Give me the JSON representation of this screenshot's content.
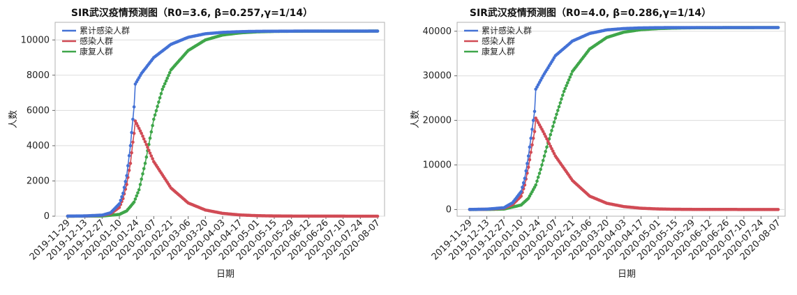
{
  "chart_data": [
    {
      "type": "line",
      "title": "SIR武汉疫情预测图（R0=3.6, β=0.257,γ=1/14）",
      "xlabel": "日期",
      "ylabel": "人数",
      "ylim": [
        0,
        11000
      ],
      "yticks": [
        0,
        2000,
        4000,
        6000,
        8000,
        10000
      ],
      "x_tick_labels": [
        "2019-11-29",
        "2019-12-13",
        "2019-12-27",
        "2020-01-10",
        "2020-01-24",
        "2020-02-07",
        "2020-02-21",
        "2020-03-06",
        "2020-03-20",
        "2020-04-03",
        "2020-04-17",
        "2020-05-01",
        "2020-05-15",
        "2020-05-29",
        "2020-06-12",
        "2020-06-26",
        "2020-07-10",
        "2020-07-24",
        "2020-08-07"
      ],
      "x_start": "2019-11-29",
      "x_end": "2020-08-07",
      "grid": true,
      "legend_position": "top-left",
      "series": [
        {
          "name": "累计感染人群",
          "color": "#4472d6",
          "points": [
            [
              "2019-11-29",
              5
            ],
            [
              "2019-12-13",
              15
            ],
            [
              "2019-12-27",
              60
            ],
            [
              "2020-01-03",
              200
            ],
            [
              "2020-01-10",
              700
            ],
            [
              "2020-01-13",
              1300
            ],
            [
              "2020-01-16",
              2300
            ],
            [
              "2020-01-19",
              4000
            ],
            [
              "2020-01-21",
              5500
            ],
            [
              "2020-01-22",
              6200
            ],
            [
              "2020-01-23",
              7500
            ],
            [
              "2020-01-28",
              8100
            ],
            [
              "2020-02-07",
              9000
            ],
            [
              "2020-02-21",
              9750
            ],
            [
              "2020-03-06",
              10150
            ],
            [
              "2020-03-20",
              10350
            ],
            [
              "2020-04-03",
              10430
            ],
            [
              "2020-04-17",
              10470
            ],
            [
              "2020-05-01",
              10490
            ],
            [
              "2020-06-01",
              10500
            ],
            [
              "2020-08-07",
              10500
            ]
          ]
        },
        {
          "name": "感染人群",
          "color": "#d14b55",
          "points": [
            [
              "2019-11-29",
              3
            ],
            [
              "2019-12-13",
              10
            ],
            [
              "2019-12-27",
              50
            ],
            [
              "2020-01-03",
              150
            ],
            [
              "2020-01-10",
              500
            ],
            [
              "2020-01-13",
              1000
            ],
            [
              "2020-01-16",
              1800
            ],
            [
              "2020-01-19",
              3000
            ],
            [
              "2020-01-21",
              4200
            ],
            [
              "2020-01-22",
              4700
            ],
            [
              "2020-01-23",
              5400
            ],
            [
              "2020-01-28",
              4700
            ],
            [
              "2020-02-07",
              3100
            ],
            [
              "2020-02-21",
              1600
            ],
            [
              "2020-03-06",
              750
            ],
            [
              "2020-03-20",
              350
            ],
            [
              "2020-04-03",
              160
            ],
            [
              "2020-04-17",
              70
            ],
            [
              "2020-05-01",
              30
            ],
            [
              "2020-05-15",
              12
            ],
            [
              "2020-06-01",
              5
            ],
            [
              "2020-08-07",
              0
            ]
          ]
        },
        {
          "name": "康复人群",
          "color": "#3fa64a",
          "points": [
            [
              "2019-11-29",
              0
            ],
            [
              "2019-12-13",
              5
            ],
            [
              "2019-12-27",
              10
            ],
            [
              "2020-01-10",
              100
            ],
            [
              "2020-01-16",
              300
            ],
            [
              "2020-01-22",
              800
            ],
            [
              "2020-01-26",
              1500
            ],
            [
              "2020-01-31",
              3000
            ],
            [
              "2020-02-07",
              5500
            ],
            [
              "2020-02-14",
              7200
            ],
            [
              "2020-02-21",
              8300
            ],
            [
              "2020-03-06",
              9400
            ],
            [
              "2020-03-20",
              10000
            ],
            [
              "2020-04-03",
              10280
            ],
            [
              "2020-04-17",
              10400
            ],
            [
              "2020-05-01",
              10460
            ],
            [
              "2020-05-15",
              10485
            ],
            [
              "2020-06-01",
              10495
            ],
            [
              "2020-08-07",
              10500
            ]
          ]
        }
      ]
    },
    {
      "type": "line",
      "title": "SIR武汉疫情预测图（R0=4.0, β=0.286,γ=1/14）",
      "xlabel": "日期",
      "ylabel": "人数",
      "ylim": [
        -1500,
        42000
      ],
      "yticks": [
        0,
        10000,
        20000,
        30000,
        40000
      ],
      "x_tick_labels": [
        "2019-11-29",
        "2019-12-13",
        "2019-12-27",
        "2020-01-10",
        "2020-01-24",
        "2020-02-07",
        "2020-02-21",
        "2020-03-06",
        "2020-03-20",
        "2020-04-03",
        "2020-04-17",
        "2020-05-01",
        "2020-05-15",
        "2020-05-29",
        "2020-06-12",
        "2020-06-26",
        "2020-07-10",
        "2020-07-24",
        "2020-08-07"
      ],
      "x_start": "2019-11-29",
      "x_end": "2020-08-07",
      "grid": true,
      "legend_position": "top-left",
      "series": [
        {
          "name": "累计感染人群",
          "color": "#4472d6",
          "points": [
            [
              "2019-11-29",
              10
            ],
            [
              "2019-12-13",
              80
            ],
            [
              "2019-12-27",
              400
            ],
            [
              "2020-01-03",
              1500
            ],
            [
              "2020-01-10",
              4000
            ],
            [
              "2020-01-13",
              7000
            ],
            [
              "2020-01-16",
              12000
            ],
            [
              "2020-01-19",
              18000
            ],
            [
              "2020-01-21",
              22000
            ],
            [
              "2020-01-22",
              27000
            ],
            [
              "2020-01-28",
              30000
            ],
            [
              "2020-02-07",
              34500
            ],
            [
              "2020-02-21",
              37800
            ],
            [
              "2020-03-06",
              39500
            ],
            [
              "2020-03-20",
              40300
            ],
            [
              "2020-04-03",
              40600
            ],
            [
              "2020-04-17",
              40750
            ],
            [
              "2020-05-01",
              40800
            ],
            [
              "2020-06-01",
              40820
            ],
            [
              "2020-08-07",
              40830
            ]
          ]
        },
        {
          "name": "感染人群",
          "color": "#d14b55",
          "points": [
            [
              "2019-11-29",
              5
            ],
            [
              "2019-12-13",
              60
            ],
            [
              "2019-12-27",
              300
            ],
            [
              "2020-01-03",
              1100
            ],
            [
              "2020-01-10",
              3000
            ],
            [
              "2020-01-13",
              5500
            ],
            [
              "2020-01-16",
              9500
            ],
            [
              "2020-01-19",
              14500
            ],
            [
              "2020-01-21",
              17500
            ],
            [
              "2020-01-22",
              20500
            ],
            [
              "2020-01-28",
              17500
            ],
            [
              "2020-02-07",
              12000
            ],
            [
              "2020-02-21",
              6500
            ],
            [
              "2020-03-06",
              3000
            ],
            [
              "2020-03-20",
              1400
            ],
            [
              "2020-04-03",
              650
            ],
            [
              "2020-04-17",
              280
            ],
            [
              "2020-05-01",
              120
            ],
            [
              "2020-05-15",
              50
            ],
            [
              "2020-06-01",
              20
            ],
            [
              "2020-08-07",
              0
            ]
          ]
        },
        {
          "name": "康复人群",
          "color": "#3fa64a",
          "points": [
            [
              "2019-11-29",
              0
            ],
            [
              "2019-12-13",
              20
            ],
            [
              "2019-12-27",
              100
            ],
            [
              "2020-01-10",
              1000
            ],
            [
              "2020-01-16",
              2500
            ],
            [
              "2020-01-22",
              5500
            ],
            [
              "2020-01-26",
              9000
            ],
            [
              "2020-01-31",
              14000
            ],
            [
              "2020-02-07",
              20500
            ],
            [
              "2020-02-14",
              26500
            ],
            [
              "2020-02-21",
              31000
            ],
            [
              "2020-03-06",
              36000
            ],
            [
              "2020-03-20",
              38600
            ],
            [
              "2020-04-03",
              39800
            ],
            [
              "2020-04-17",
              40350
            ],
            [
              "2020-05-01",
              40600
            ],
            [
              "2020-05-15",
              40720
            ],
            [
              "2020-06-01",
              40790
            ],
            [
              "2020-08-07",
              40830
            ]
          ]
        }
      ]
    }
  ]
}
